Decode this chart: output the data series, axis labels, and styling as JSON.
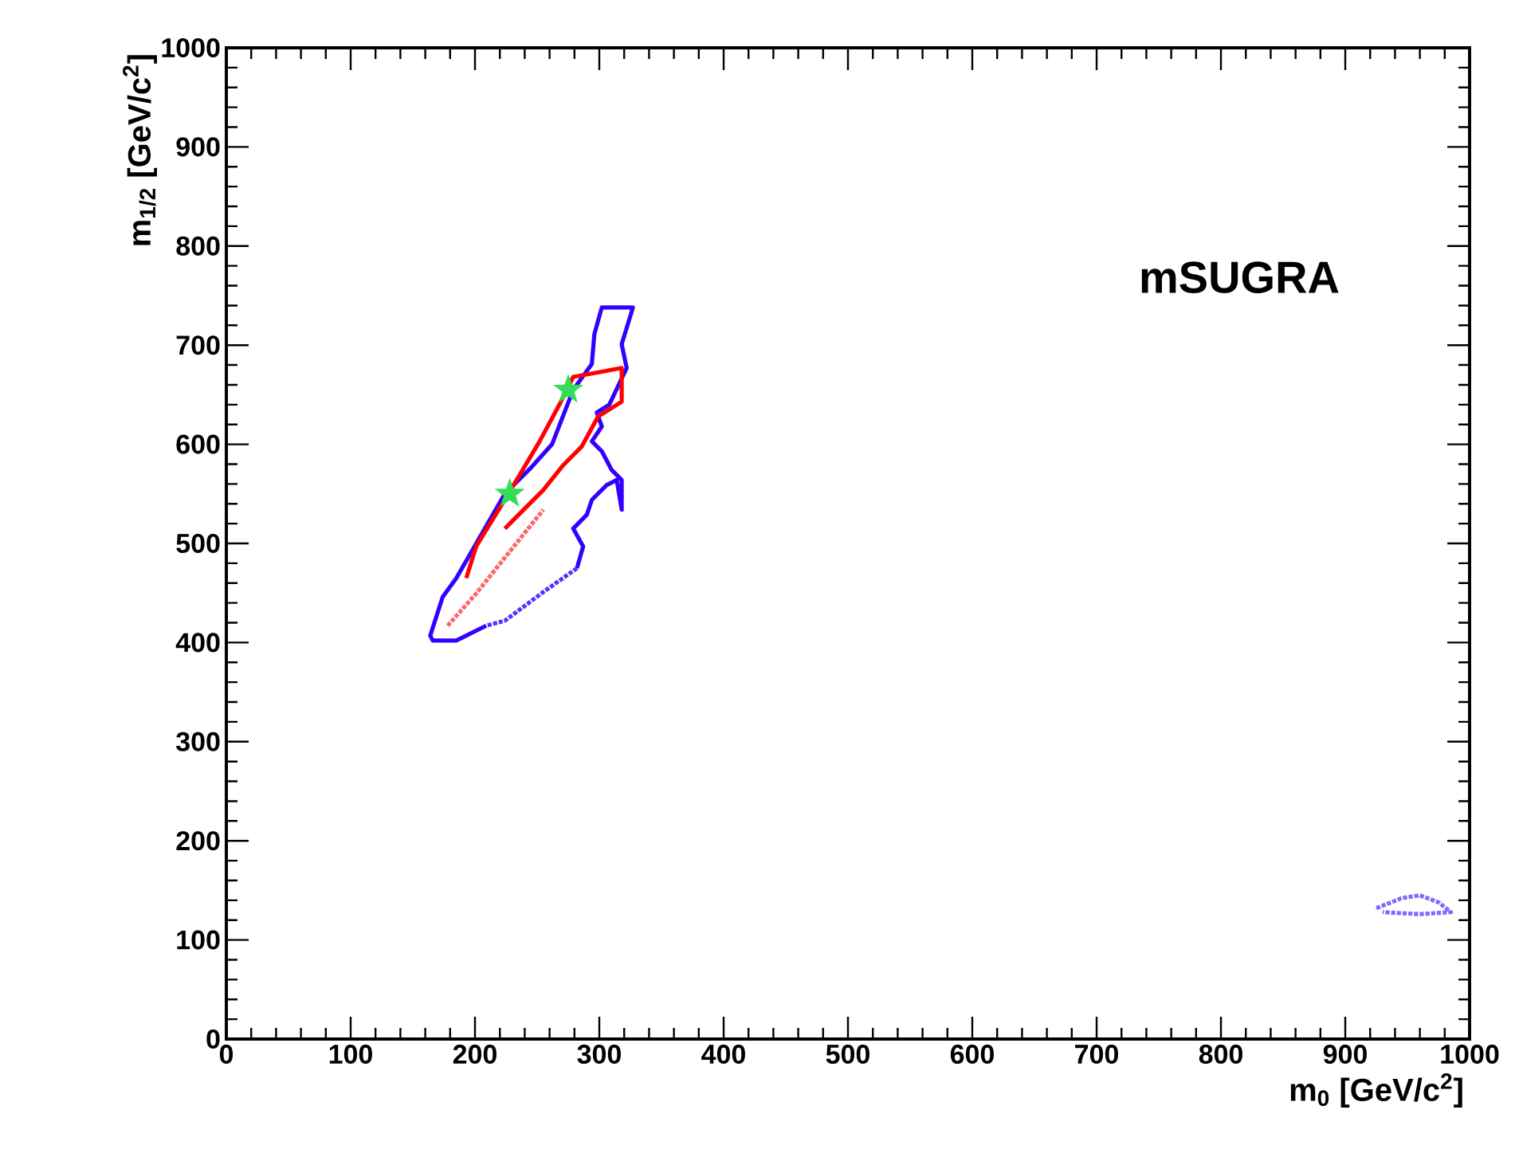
{
  "chart_data": {
    "type": "line",
    "xlabel": "m$_{0}$ [GeV/c$^{2}$]",
    "ylabel": "m$_{1/2}$ [GeV/c$^{2}$]",
    "annotations": [
      "**mSUGRA**"
    ],
    "xlim": [
      0,
      1000
    ],
    "ylim": [
      0,
      1000
    ],
    "xticks": [
      0,
      100,
      200,
      300,
      400,
      500,
      600,
      700,
      800,
      900,
      1000
    ],
    "yticks": [
      0,
      100,
      200,
      300,
      400,
      500,
      600,
      700,
      800,
      900,
      1000
    ],
    "grid": false,
    "series": [
      {
        "color": "#3300ff",
        "line_style": "solid",
        "x": [
          209,
          185,
          166,
          164,
          174,
          185,
          201,
          224,
          244,
          262,
          279,
          294,
          296,
          302,
          327,
          318,
          322,
          308,
          298,
          302,
          294,
          302,
          310,
          318,
          318,
          314,
          306,
          294,
          290,
          279,
          287,
          282
        ],
        "values": [
          417,
          402,
          402,
          407,
          446,
          465,
          500,
          550,
          575,
          600,
          655,
          681,
          711,
          738,
          738,
          701,
          677,
          640,
          632,
          618,
          603,
          593,
          574,
          564,
          534,
          564,
          559,
          544,
          529,
          515,
          497,
          475
        ]
      },
      {
        "color": "#5533ff",
        "line_style": "dotted",
        "x": [
          282,
          255,
          224,
          209
        ],
        "values": [
          475,
          451,
          422,
          417
        ]
      },
      {
        "color": "#ff0000",
        "line_style": "solid",
        "x": [
          193,
          201,
          224,
          252,
          267,
          279,
          318,
          318,
          299,
          286,
          271,
          255,
          224
        ],
        "values": [
          465,
          497,
          544,
          603,
          638,
          668,
          677,
          643,
          628,
          598,
          579,
          554,
          515
        ]
      },
      {
        "color": "#ff6666",
        "line_style": "dotted",
        "x": [
          178,
          200,
          230,
          255
        ],
        "values": [
          417,
          448,
          495,
          534
        ]
      },
      {
        "color": "#8866ff",
        "line_style": "dotted",
        "x": [
          925,
          945,
          960,
          975,
          985,
          960,
          930
        ],
        "values": [
          132,
          142,
          145,
          138,
          128,
          126,
          128
        ]
      },
      {
        "type": "scatter",
        "color": "#33dd55",
        "marker": "star",
        "x": [
          275,
          228
        ],
        "values": [
          655,
          550
        ]
      }
    ]
  }
}
